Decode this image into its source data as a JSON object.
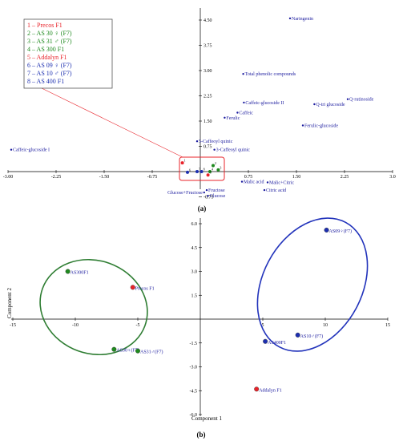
{
  "colors": {
    "red": "#e8232a",
    "green": "#1f8a1f",
    "blue": "#1c2fb0",
    "navy": "#1a1a9e",
    "ellipse_green": "#2e7d32",
    "ellipse_blue": "#2233bb"
  },
  "legend": [
    {
      "num": "1",
      "name": "Precos F1",
      "color": "#e8232a"
    },
    {
      "num": "2",
      "name": "AS 30 ♀ (F7)",
      "color": "#1f8a1f"
    },
    {
      "num": "3",
      "name": "AS 31 ♂ (F7)",
      "color": "#1f8a1f"
    },
    {
      "num": "4",
      "name": "AS 300 F1",
      "color": "#1f8a1f"
    },
    {
      "num": "5",
      "name": "Addalyn F1",
      "color": "#e8232a"
    },
    {
      "num": "6",
      "name": "AS 09 ♀ (F7)",
      "color": "#1c2fb0"
    },
    {
      "num": "7",
      "name": "AS 10 ♂ (F7)",
      "color": "#1c2fb0"
    },
    {
      "num": "8",
      "name": "AS 400 F1",
      "color": "#1c2fb0"
    }
  ],
  "chart_data": [
    {
      "type": "scatter",
      "panel": "(a)",
      "xlim": [
        -3.0,
        3.0
      ],
      "ylim": [
        -0.75,
        4.5
      ],
      "x_ticks": [
        "-3.00",
        "-2.25",
        "-1.50",
        "-0.75",
        "0.75",
        "1.50",
        "2.25",
        "3.0"
      ],
      "x_tick_values": [
        -3.0,
        -2.25,
        -1.5,
        -0.75,
        0.75,
        1.5,
        2.25,
        3.0
      ],
      "y_ticks": [
        "4.50",
        "3.75",
        "3.00",
        "2.25",
        "1.50",
        "0.75",
        "-0.75"
      ],
      "y_tick_values": [
        4.5,
        3.75,
        3.0,
        2.25,
        1.5,
        0.75,
        -0.75
      ],
      "loadings": [
        {
          "label": "Naringenin",
          "x": 1.4,
          "y": 4.55,
          "side": "right"
        },
        {
          "label": "Total phenolic compounds",
          "x": 0.67,
          "y": 2.9,
          "side": "right"
        },
        {
          "label": "Q-rutinoside",
          "x": 2.3,
          "y": 2.15,
          "side": "right"
        },
        {
          "label": "Caffeic-glucoside II",
          "x": 0.68,
          "y": 2.05,
          "side": "right"
        },
        {
          "label": "Q-tri glucoside",
          "x": 1.78,
          "y": 2.0,
          "side": "right"
        },
        {
          "label": "Caffeic",
          "x": 0.58,
          "y": 1.75,
          "side": "right"
        },
        {
          "label": "Ferulic",
          "x": 0.38,
          "y": 1.6,
          "side": "right"
        },
        {
          "label": "Ferulic-glucoside",
          "x": 1.6,
          "y": 1.37,
          "side": "right"
        },
        {
          "label": "5-Caffeoyl quinic",
          "x": -0.05,
          "y": 0.9,
          "side": "right"
        },
        {
          "label": "3-Caffeoyl quinic",
          "x": 0.22,
          "y": 0.65,
          "side": "right"
        },
        {
          "label": "Caffeic-glucoside I",
          "x": -2.95,
          "y": 0.65,
          "side": "right"
        },
        {
          "label": "Malic acid",
          "x": 0.65,
          "y": -0.3,
          "side": "right"
        },
        {
          "label": "Malic+Citric",
          "x": 1.05,
          "y": -0.32,
          "side": "right"
        },
        {
          "label": "Citric acid",
          "x": 1.0,
          "y": -0.55,
          "side": "right"
        },
        {
          "label": "Fructose",
          "x": 0.1,
          "y": -0.55,
          "side": "right"
        },
        {
          "label": "Glucose+Fructose",
          "x": 0.06,
          "y": -0.62,
          "side": "left"
        },
        {
          "label": "Glucose",
          "x": 0.12,
          "y": -0.72,
          "side": "right"
        }
      ],
      "samples": [
        {
          "id": "1",
          "x": -0.28,
          "y": 0.26,
          "color": "#e8232a"
        },
        {
          "id": "2",
          "x": 0.2,
          "y": 0.18,
          "color": "#1f8a1f"
        },
        {
          "id": "3",
          "x": 0.28,
          "y": 0.05,
          "color": "#1f8a1f"
        },
        {
          "id": "4",
          "x": 0.15,
          "y": 0.0,
          "color": "#1f8a1f"
        },
        {
          "id": "5",
          "x": 0.12,
          "y": -0.1,
          "color": "#e8232a"
        },
        {
          "id": "6",
          "x": -0.2,
          "y": -0.02,
          "color": "#1c2fb0"
        },
        {
          "id": "7",
          "x": -0.05,
          "y": 0.0,
          "color": "#1c2fb0"
        },
        {
          "id": "8",
          "x": 0.02,
          "y": 0.0,
          "color": "#1c2fb0"
        }
      ],
      "caption": "(a)"
    },
    {
      "type": "scatter",
      "panel": "(b)",
      "xlabel": "Component 1",
      "ylabel": "Component 2",
      "xlim": [
        -15,
        15
      ],
      "ylim": [
        -6.0,
        6.0
      ],
      "x_ticks": [
        "-15",
        "-10",
        "-5",
        "5",
        "10",
        "15"
      ],
      "x_tick_values": [
        -15,
        -10,
        -5,
        5,
        10,
        15
      ],
      "y_ticks": [
        "6.0",
        "4.5",
        "3.0",
        "1.5",
        "-1.5",
        "-3.0",
        "-4.5",
        "-6.0"
      ],
      "y_tick_values": [
        6.0,
        4.5,
        3.0,
        1.5,
        -1.5,
        -3.0,
        -4.5,
        -6.0
      ],
      "points": [
        {
          "label": "AS300F1",
          "x": -10.6,
          "y": 3.0,
          "color": "#1f8a1f"
        },
        {
          "label": "Precos F1",
          "x": -5.4,
          "y": 2.0,
          "color": "#e8232a"
        },
        {
          "label": "AS30♀(F7)",
          "x": -6.9,
          "y": -1.9,
          "color": "#1f8a1f"
        },
        {
          "label": "AS31♂(F7)",
          "x": -5.0,
          "y": -2.0,
          "color": "#1f8a1f"
        },
        {
          "label": "AS09♀(F7)",
          "x": 10.1,
          "y": 5.6,
          "color": "#1c2fb0"
        },
        {
          "label": "AS10♂(F7)",
          "x": 7.8,
          "y": -1.0,
          "color": "#1c2fb0"
        },
        {
          "label": "AS400F1",
          "x": 5.2,
          "y": -1.4,
          "color": "#1c2fb0"
        },
        {
          "label": "Addalyn F1",
          "x": 4.5,
          "y": -4.4,
          "color": "#e8232a"
        }
      ],
      "caption": "(b)"
    }
  ]
}
